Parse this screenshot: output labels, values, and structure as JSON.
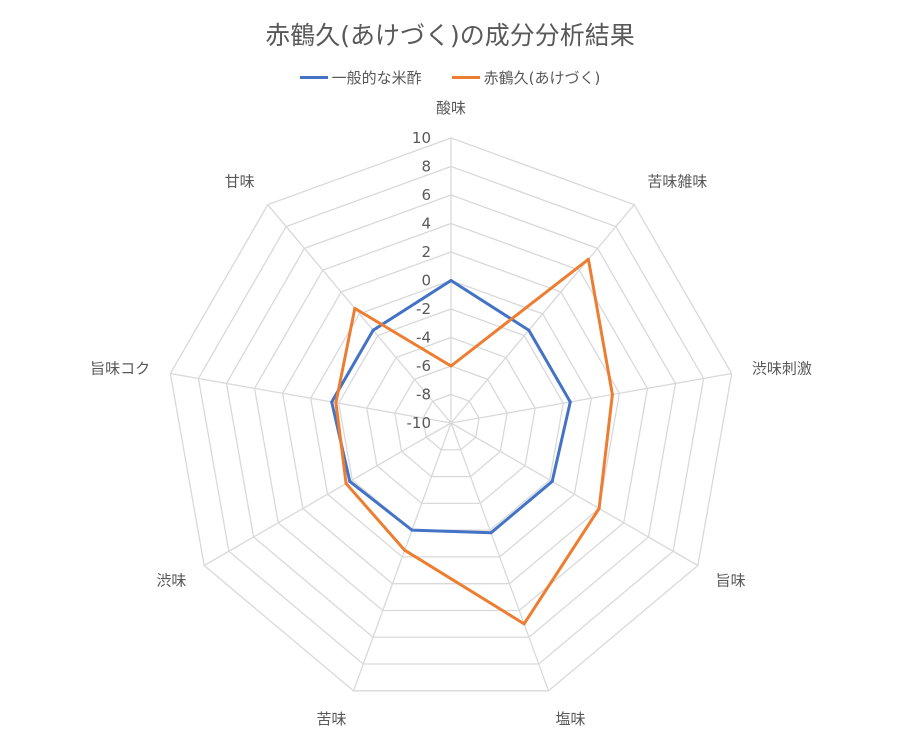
{
  "chart_data": {
    "type": "radar",
    "title": "赤鶴久(あけづく)の成分分析結果",
    "categories": [
      "酸味",
      "苦味雑味",
      "渋味刺激",
      "旨味",
      "塩味",
      "苦味",
      "渋味",
      "旨味コク",
      "甘味"
    ],
    "range": [
      -10,
      10
    ],
    "tick_step": 2,
    "ticks": [
      "10",
      "8",
      "6",
      "4",
      "2",
      "0",
      "-2",
      "-4",
      "-6",
      "-8",
      "-10"
    ],
    "grid": true,
    "legend_position": "top",
    "series": [
      {
        "name": "一般的な米酢",
        "color": "#4472C4",
        "values": [
          0,
          -1.5,
          -1.5,
          -1.8,
          -1.8,
          -2,
          -1.8,
          -1.5,
          -1.5
        ]
      },
      {
        "name": "赤鶴久(あけづく)",
        "color": "#ED7D31",
        "values": [
          -6,
          5,
          1.5,
          2,
          5,
          -0.5,
          -1.5,
          -1.8,
          0.5
        ]
      }
    ]
  }
}
